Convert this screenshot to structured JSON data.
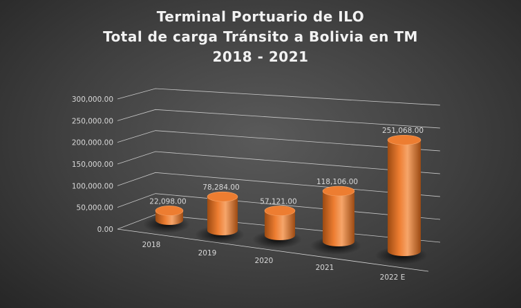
{
  "title_lines": [
    "Terminal Portuario de ILO",
    "Total de carga Tránsito a Bolivia en TM",
    "2018 - 2021"
  ],
  "colors": {
    "bar": "#ED7D31",
    "bar_dark": "#9c4a12",
    "bar_light": "#f6a56a",
    "grid": "#d9d9d9",
    "text": "#d9d9d9"
  },
  "chart_data": {
    "type": "bar",
    "style": "3d-cylinder",
    "title": "Terminal Portuario de ILO / Total de carga Tránsito a Bolivia en TM / 2018 - 2021",
    "categories": [
      "2018",
      "2019",
      "2020",
      "2021",
      "2022 E"
    ],
    "values": [
      22098,
      78284,
      57121,
      118106,
      251068
    ],
    "data_labels": [
      "22,098.00",
      "78,284.00",
      "57,121.00",
      "118,106.00",
      "251,068.00"
    ],
    "y_ticks": [
      "0.00",
      "50,000.00",
      "100,000.00",
      "150,000.00",
      "200,000.00",
      "250,000.00",
      "300,000.00"
    ],
    "ylim": [
      0,
      300000
    ],
    "grid": true,
    "legend": false
  }
}
